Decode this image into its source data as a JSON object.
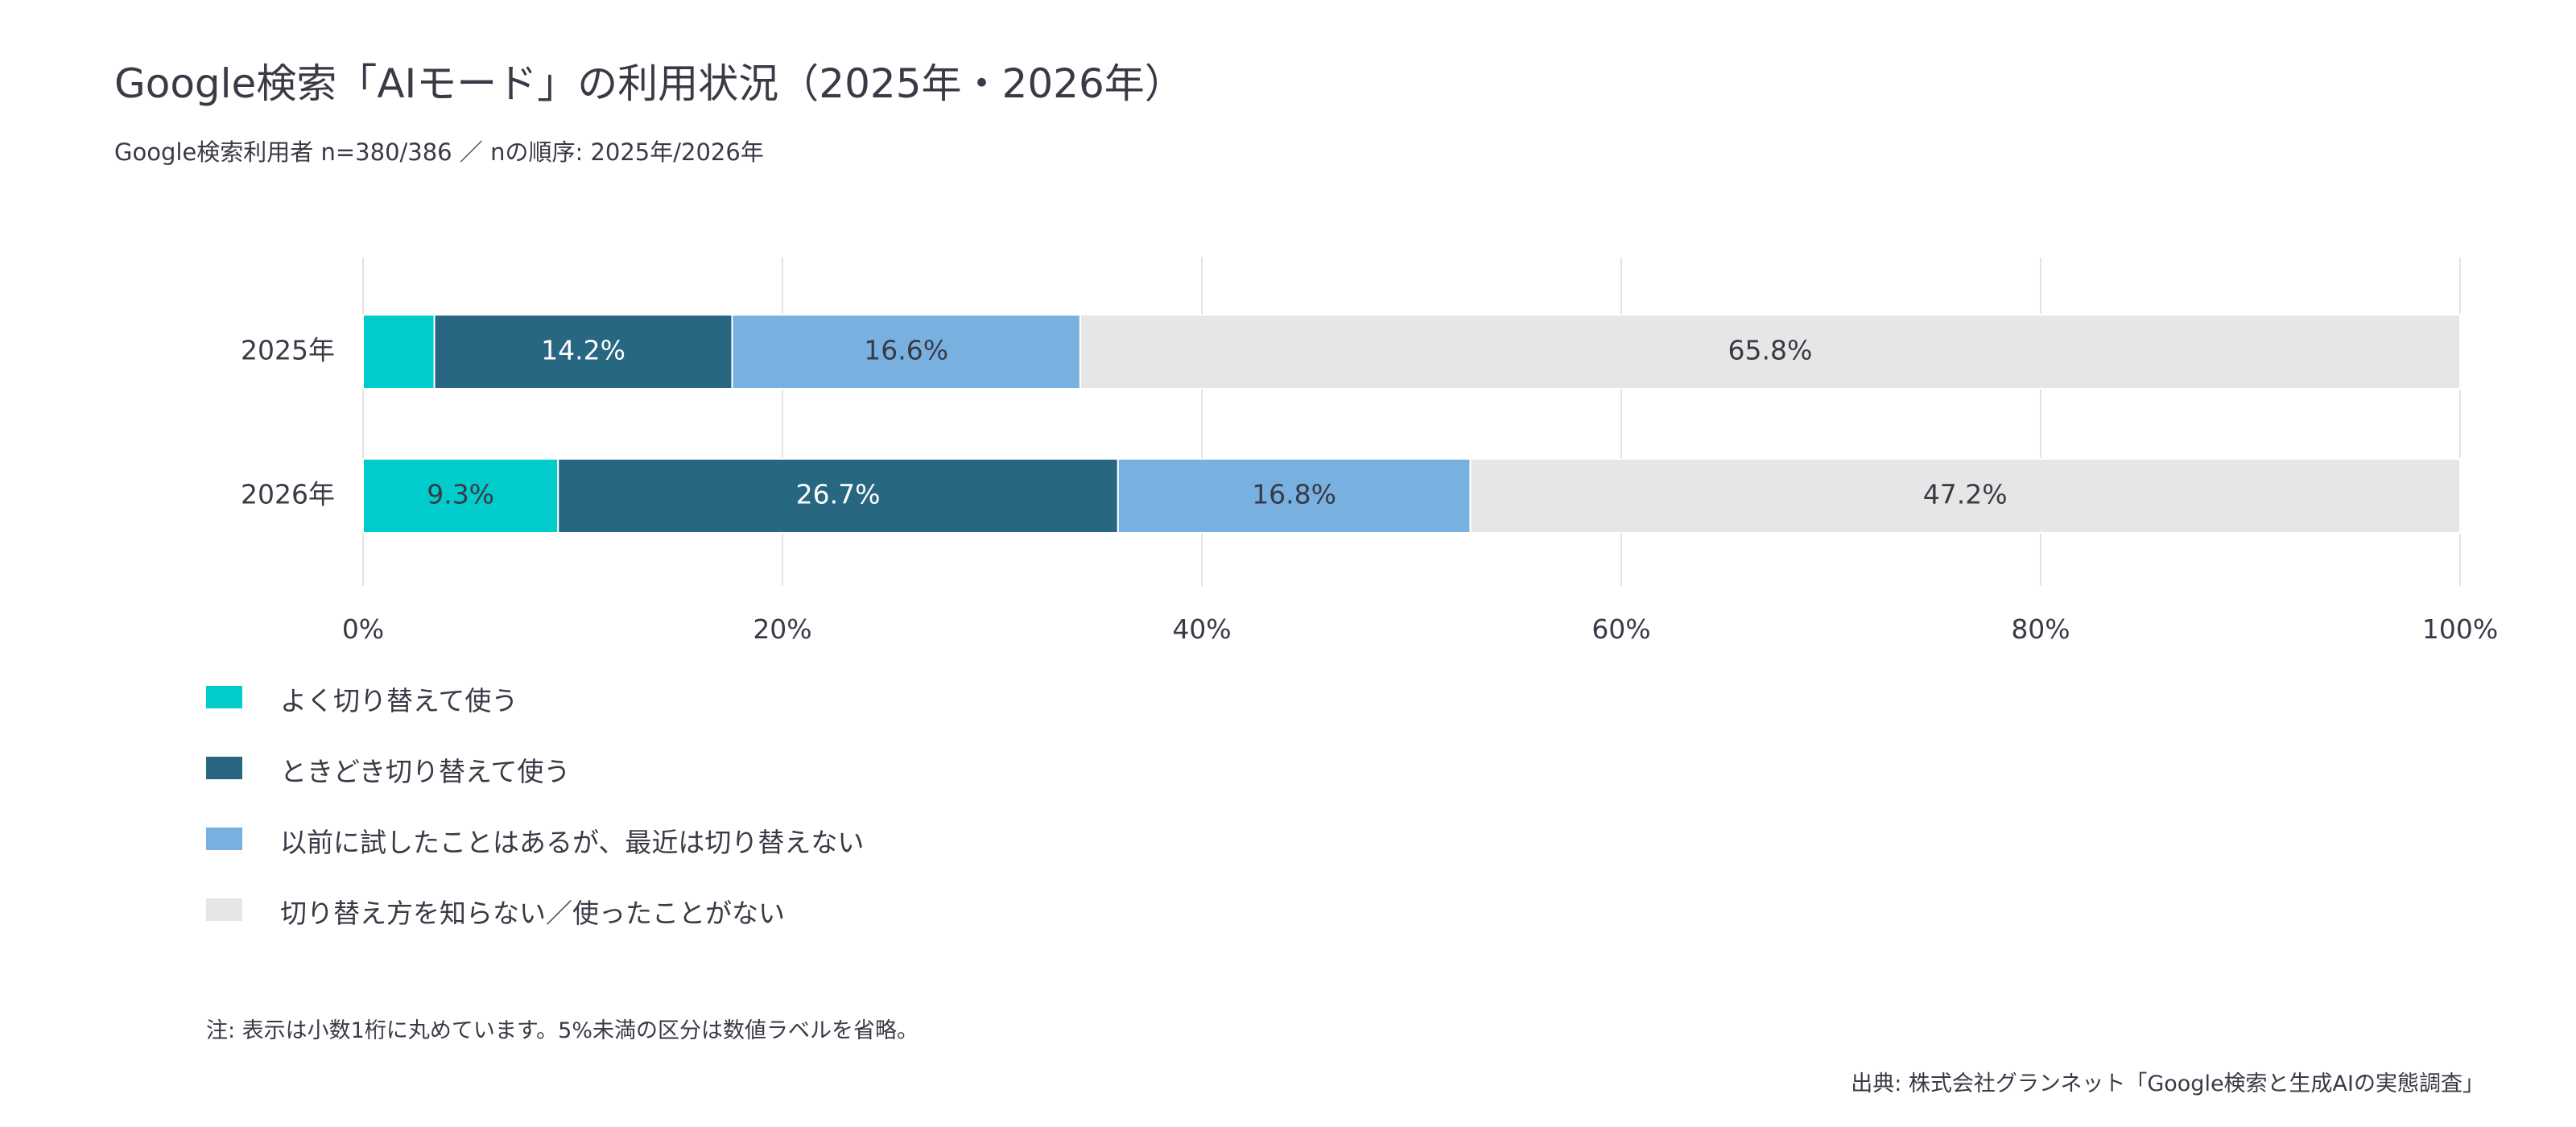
{
  "header": {
    "title": "Google検索「AIモード」の利用状況（2025年・2026年）",
    "subtitle": "Google検索利用者 n=380/386 ／ nの順序: 2025年/2026年"
  },
  "chart_data": {
    "type": "bar",
    "orientation": "horizontal",
    "stacked": true,
    "categories": [
      "2025年",
      "2026年"
    ],
    "series": [
      {
        "name": "よく切り替えて使う",
        "color": "#00cccc",
        "values": [
          3.4,
          9.3
        ],
        "labels": [
          "",
          "9.3%"
        ],
        "label_color": "#3a3a46"
      },
      {
        "name": "ときどき切り替えて使う",
        "color": "#286782",
        "values": [
          14.2,
          26.7
        ],
        "labels": [
          "14.2%",
          "26.7%"
        ],
        "label_color": "#ffffff"
      },
      {
        "name": "以前に試したことはあるが、最近は切り替えない",
        "color": "#78b0e0",
        "values": [
          16.6,
          16.8
        ],
        "labels": [
          "16.6%",
          "16.8%"
        ],
        "label_color": "#3a3a46"
      },
      {
        "name": "切り替え方を知らない／使ったことがない",
        "color": "#e6e6e6",
        "values": [
          65.8,
          47.2
        ],
        "labels": [
          "65.8%",
          "47.2%"
        ],
        "label_color": "#3a3a46"
      }
    ],
    "xlim": [
      0,
      100
    ],
    "xticks": [
      0,
      20,
      40,
      60,
      80,
      100
    ],
    "xtick_labels": [
      "0%",
      "20%",
      "40%",
      "60%",
      "80%",
      "100%"
    ],
    "grid": true,
    "legend_position": "bottom-left"
  },
  "footer": {
    "note": "注: 表示は小数1桁に丸めています。5%未満の区分は数値ラベルを省略。",
    "source": "出典: 株式会社グランネット「Google検索と生成AIの実態調査」"
  }
}
